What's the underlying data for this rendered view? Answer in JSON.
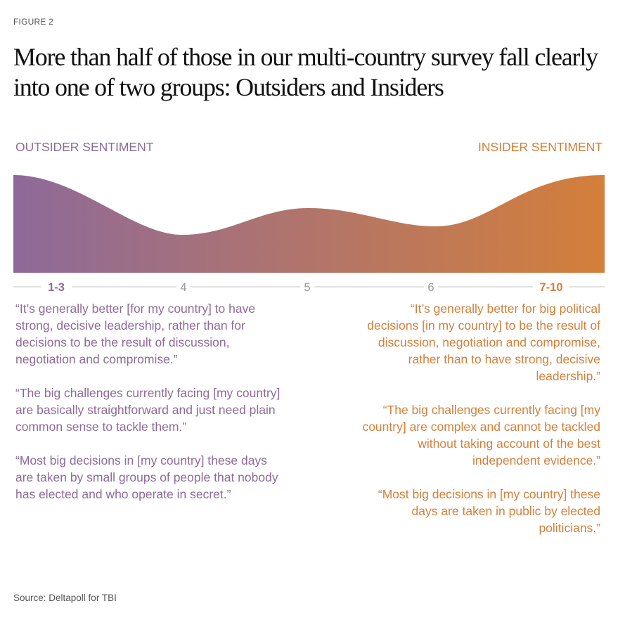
{
  "figure_label": "FIGURE 2",
  "title": "More than half of those in our multi-country survey fall clearly into one of two groups: Outsiders and Insiders",
  "colors": {
    "outsider": "#8e6a9a",
    "insider": "#d47f3a",
    "scale_line": "#cfcfcf",
    "tick_text": "#999999"
  },
  "outsider_label": "OUTSIDER SENTIMENT",
  "insider_label": "INSIDER SENTIMENT",
  "scale": {
    "ticks": [
      {
        "label": "1-3",
        "emphasis": "outsider"
      },
      {
        "label": "4",
        "emphasis": "none"
      },
      {
        "label": "5",
        "emphasis": "none"
      },
      {
        "label": "6",
        "emphasis": "none"
      },
      {
        "label": "7-10",
        "emphasis": "insider"
      }
    ]
  },
  "outsider_quotes": [
    "“It’s generally better [for my country] to have strong, decisive leadership, rather than for decisions to be the result of discussion, negotiation and compromise.”",
    "“The big challenges currently facing [my country] are basically straightforward and just need plain common sense to tackle them.”",
    "“Most big decisions in [my country] these days are taken by small groups of people that nobody has elected and who operate in secret.”"
  ],
  "insider_quotes": [
    "“It’s generally better for big political decisions [in my country] to be the result of discussion, negotiation and compromise, rather than to have strong, decisive leadership.”",
    "“The big challenges currently facing [my country] are complex and cannot be tackled without taking account of the best independent evidence.”",
    "“Most big decisions in [my country] these days are taken in public by elected politicians.”"
  ],
  "source": "Source: Deltapoll for TBI"
}
